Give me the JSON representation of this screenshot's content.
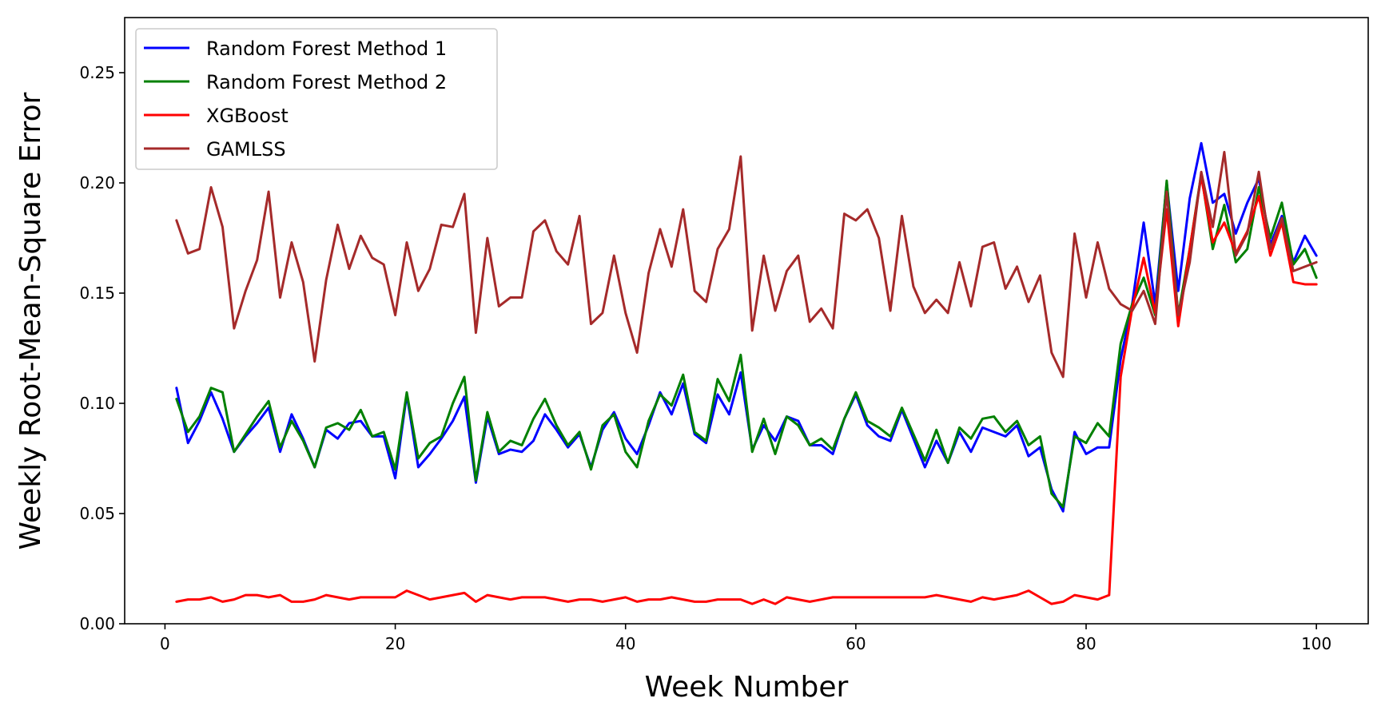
{
  "chart_data": {
    "type": "line",
    "title": "",
    "xlabel": "Week Number",
    "ylabel": "Weekly Root-Mean-Square Error",
    "xlim": [
      -3.5,
      104.5
    ],
    "ylim": [
      0,
      0.275
    ],
    "xticks": [
      0,
      20,
      40,
      60,
      80,
      100
    ],
    "xtick_labels": [
      "0",
      "20",
      "40",
      "60",
      "80",
      "100"
    ],
    "yticks": [
      0.0,
      0.05,
      0.1,
      0.15,
      0.2,
      0.25
    ],
    "ytick_labels": [
      "0.00",
      "0.05",
      "0.10",
      "0.15",
      "0.20",
      "0.25"
    ],
    "grid": false,
    "legend_position": "top-left",
    "x": [
      1,
      2,
      3,
      4,
      5,
      6,
      7,
      8,
      9,
      10,
      11,
      12,
      13,
      14,
      15,
      16,
      17,
      18,
      19,
      20,
      21,
      22,
      23,
      24,
      25,
      26,
      27,
      28,
      29,
      30,
      31,
      32,
      33,
      34,
      35,
      36,
      37,
      38,
      39,
      40,
      41,
      42,
      43,
      44,
      45,
      46,
      47,
      48,
      49,
      50,
      51,
      52,
      53,
      54,
      55,
      56,
      57,
      58,
      59,
      60,
      61,
      62,
      63,
      64,
      65,
      66,
      67,
      68,
      69,
      70,
      71,
      72,
      73,
      74,
      75,
      76,
      77,
      78,
      79,
      80,
      81,
      82,
      83,
      84,
      85,
      86,
      87,
      88,
      89,
      90,
      91,
      92,
      93,
      94,
      95,
      96,
      97,
      98,
      99,
      100
    ],
    "series": [
      {
        "name": "Random Forest Method 1",
        "color": "#0000ff",
        "values": [
          0.107,
          0.082,
          0.092,
          0.105,
          0.093,
          0.078,
          0.085,
          0.091,
          0.098,
          0.078,
          0.095,
          0.084,
          0.071,
          0.088,
          0.084,
          0.091,
          0.092,
          0.085,
          0.085,
          0.066,
          0.104,
          0.071,
          0.077,
          0.084,
          0.092,
          0.103,
          0.064,
          0.094,
          0.077,
          0.079,
          0.078,
          0.083,
          0.095,
          0.088,
          0.08,
          0.086,
          0.071,
          0.088,
          0.096,
          0.084,
          0.077,
          0.09,
          0.105,
          0.095,
          0.109,
          0.086,
          0.082,
          0.104,
          0.095,
          0.114,
          0.079,
          0.09,
          0.083,
          0.094,
          0.092,
          0.081,
          0.081,
          0.077,
          0.093,
          0.104,
          0.09,
          0.085,
          0.083,
          0.097,
          0.084,
          0.071,
          0.083,
          0.073,
          0.087,
          0.078,
          0.089,
          0.087,
          0.085,
          0.09,
          0.076,
          0.08,
          0.061,
          0.051,
          0.087,
          0.077,
          0.08,
          0.08,
          0.12,
          0.145,
          0.182,
          0.145,
          0.2,
          0.151,
          0.193,
          0.218,
          0.191,
          0.195,
          0.177,
          0.191,
          0.202,
          0.172,
          0.185,
          0.164,
          0.176,
          0.167
        ]
      },
      {
        "name": "Random Forest Method 2",
        "color": "#008000",
        "values": [
          0.102,
          0.087,
          0.094,
          0.107,
          0.105,
          0.078,
          0.086,
          0.094,
          0.101,
          0.08,
          0.092,
          0.083,
          0.071,
          0.089,
          0.091,
          0.088,
          0.097,
          0.085,
          0.087,
          0.07,
          0.105,
          0.075,
          0.082,
          0.085,
          0.1,
          0.112,
          0.065,
          0.096,
          0.078,
          0.083,
          0.081,
          0.093,
          0.102,
          0.09,
          0.081,
          0.087,
          0.07,
          0.09,
          0.095,
          0.078,
          0.071,
          0.092,
          0.104,
          0.099,
          0.113,
          0.087,
          0.083,
          0.111,
          0.101,
          0.122,
          0.078,
          0.093,
          0.077,
          0.094,
          0.09,
          0.081,
          0.084,
          0.079,
          0.093,
          0.105,
          0.092,
          0.089,
          0.085,
          0.098,
          0.086,
          0.074,
          0.088,
          0.073,
          0.089,
          0.084,
          0.093,
          0.094,
          0.087,
          0.092,
          0.081,
          0.085,
          0.059,
          0.053,
          0.085,
          0.082,
          0.091,
          0.085,
          0.127,
          0.145,
          0.157,
          0.14,
          0.201,
          0.14,
          0.17,
          0.204,
          0.17,
          0.19,
          0.164,
          0.17,
          0.198,
          0.175,
          0.191,
          0.163,
          0.17,
          0.157
        ]
      },
      {
        "name": "XGBoost",
        "color": "#ff0000",
        "values": [
          0.01,
          0.011,
          0.011,
          0.012,
          0.01,
          0.011,
          0.013,
          0.013,
          0.012,
          0.013,
          0.01,
          0.01,
          0.011,
          0.013,
          0.012,
          0.011,
          0.012,
          0.012,
          0.012,
          0.012,
          0.015,
          0.013,
          0.011,
          0.012,
          0.013,
          0.014,
          0.01,
          0.013,
          0.012,
          0.011,
          0.012,
          0.012,
          0.012,
          0.011,
          0.01,
          0.011,
          0.011,
          0.01,
          0.011,
          0.012,
          0.01,
          0.011,
          0.011,
          0.012,
          0.011,
          0.01,
          0.01,
          0.011,
          0.011,
          0.011,
          0.009,
          0.011,
          0.009,
          0.012,
          0.011,
          0.01,
          0.011,
          0.012,
          0.012,
          0.012,
          0.012,
          0.012,
          0.012,
          0.012,
          0.012,
          0.012,
          0.013,
          0.012,
          0.011,
          0.01,
          0.012,
          0.011,
          0.012,
          0.013,
          0.015,
          0.012,
          0.009,
          0.01,
          0.013,
          0.012,
          0.011,
          0.013,
          0.112,
          0.143,
          0.166,
          0.141,
          0.188,
          0.135,
          0.17,
          0.203,
          0.173,
          0.182,
          0.168,
          0.178,
          0.194,
          0.167,
          0.182,
          0.155,
          0.154,
          0.154
        ]
      },
      {
        "name": "GAMLSS",
        "color": "#a52a2a",
        "values": [
          0.183,
          0.168,
          0.17,
          0.198,
          0.18,
          0.134,
          0.151,
          0.165,
          0.196,
          0.148,
          0.173,
          0.155,
          0.119,
          0.156,
          0.181,
          0.161,
          0.176,
          0.166,
          0.163,
          0.14,
          0.173,
          0.151,
          0.161,
          0.181,
          0.18,
          0.195,
          0.132,
          0.175,
          0.144,
          0.148,
          0.148,
          0.178,
          0.183,
          0.169,
          0.163,
          0.185,
          0.136,
          0.141,
          0.167,
          0.141,
          0.123,
          0.159,
          0.179,
          0.162,
          0.188,
          0.151,
          0.146,
          0.17,
          0.179,
          0.212,
          0.133,
          0.167,
          0.142,
          0.16,
          0.167,
          0.137,
          0.143,
          0.134,
          0.186,
          0.183,
          0.188,
          0.175,
          0.142,
          0.185,
          0.153,
          0.141,
          0.147,
          0.141,
          0.164,
          0.144,
          0.171,
          0.173,
          0.152,
          0.162,
          0.146,
          0.158,
          0.123,
          0.112,
          0.177,
          0.148,
          0.173,
          0.152,
          0.145,
          0.142,
          0.151,
          0.136,
          0.196,
          0.14,
          0.164,
          0.205,
          0.18,
          0.214,
          0.167,
          0.177,
          0.205,
          0.17,
          0.184,
          0.16,
          0.162,
          0.164
        ]
      }
    ]
  }
}
